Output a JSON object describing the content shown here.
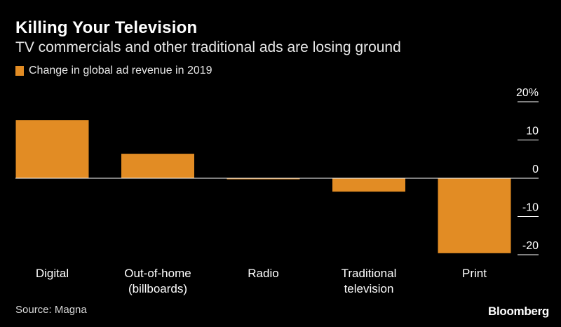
{
  "title": "Killing Your Television",
  "subtitle": "TV commercials and other traditional ads are losing ground",
  "source": "Source: Magna",
  "brand": "Bloomberg",
  "colors": {
    "background": "#000000",
    "bar": "#e28c24",
    "text": "#ffffff",
    "axis": "#ffffff"
  },
  "chart_data": {
    "type": "bar",
    "categories": [
      [
        "Digital"
      ],
      [
        "Out-of-home",
        "(billboards)"
      ],
      [
        "Radio"
      ],
      [
        "Traditional",
        "television"
      ],
      [
        "Print"
      ]
    ],
    "series": [
      {
        "name": "Change in global ad revenue in 2019",
        "values": [
          15.2,
          6.4,
          -0.2,
          -3.5,
          -19.6
        ]
      }
    ],
    "ylim": [
      -20,
      20
    ],
    "yticks": [
      20,
      10,
      0,
      -10,
      -20
    ],
    "ytick_labels": [
      "20%",
      "10",
      "0",
      "-10",
      "-20"
    ],
    "y_axis_position": "right",
    "grid": false,
    "legend_position": "top-left"
  }
}
